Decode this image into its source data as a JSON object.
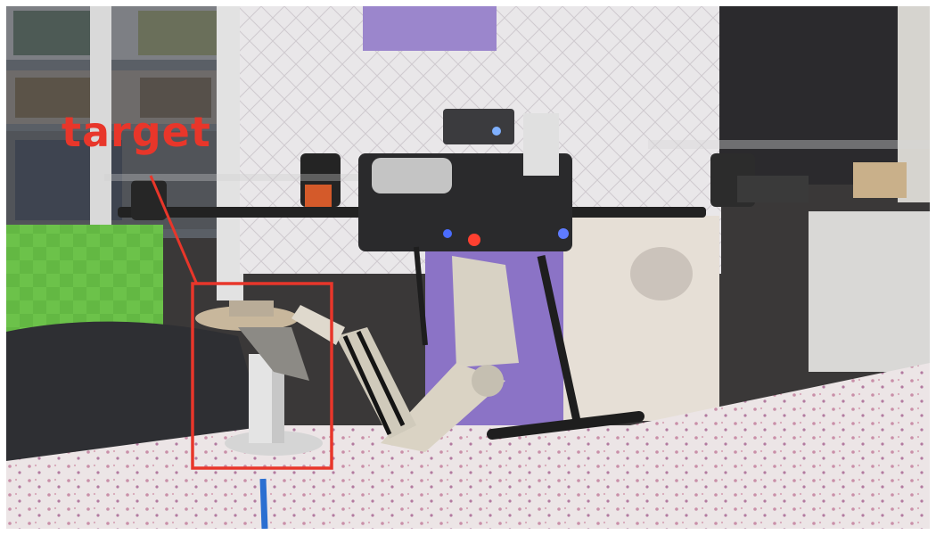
{
  "annotation": {
    "label": "target",
    "color": "#e8362a"
  },
  "scene": {
    "subject": "hexacopter-with-robotic-arm",
    "target_object": "perch-platform-on-post"
  }
}
